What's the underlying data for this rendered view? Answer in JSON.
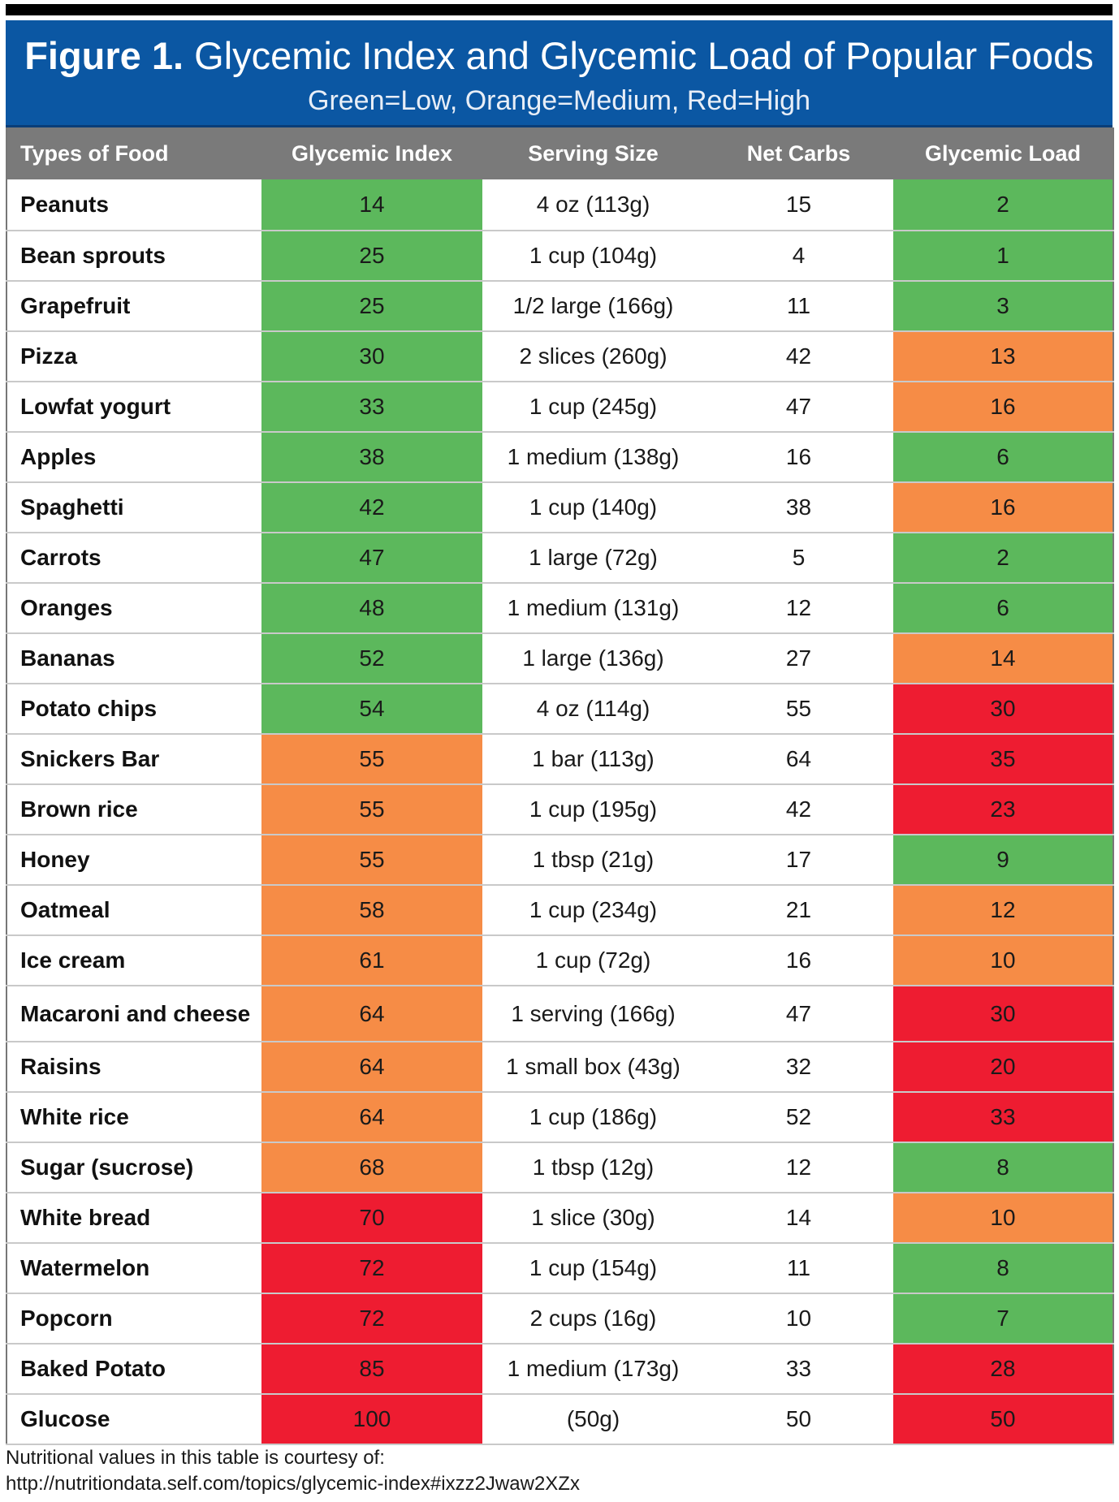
{
  "header": {
    "figure_label": "Figure 1.",
    "title": "Glycemic Index and Glycemic Load of Popular Foods",
    "subtitle": "Green=Low, Orange=Medium, Red=High"
  },
  "colors": {
    "low": "#5cb85c",
    "medium": "#f68c46",
    "high": "#ee1c31",
    "header_bg": "#0b57a3",
    "column_header_bg": "#7a7a7a"
  },
  "chart_data": {
    "type": "table",
    "title": "Figure 1. Glycemic Index and Glycemic Load of Popular Foods",
    "subtitle": "Green=Low, Orange=Medium, Red=High",
    "columns": [
      "Types of Food",
      "Glycemic Index",
      "Serving Size",
      "Net Carbs",
      "Glycemic Load"
    ],
    "rows": [
      {
        "food": "Peanuts",
        "gi": "14",
        "gi_level": "low",
        "serving": "4 oz (113g)",
        "net_carbs": "15",
        "gl": "2",
        "gl_level": "low"
      },
      {
        "food": "Bean sprouts",
        "gi": "25",
        "gi_level": "low",
        "serving": "1 cup (104g)",
        "net_carbs": "4",
        "gl": "1",
        "gl_level": "low"
      },
      {
        "food": "Grapefruit",
        "gi": "25",
        "gi_level": "low",
        "serving": "1/2 large (166g)",
        "net_carbs": "11",
        "gl": "3",
        "gl_level": "low"
      },
      {
        "food": "Pizza",
        "gi": "30",
        "gi_level": "low",
        "serving": "2 slices (260g)",
        "net_carbs": "42",
        "gl": "13",
        "gl_level": "medium"
      },
      {
        "food": "Lowfat yogurt",
        "gi": "33",
        "gi_level": "low",
        "serving": "1 cup (245g)",
        "net_carbs": "47",
        "gl": "16",
        "gl_level": "medium"
      },
      {
        "food": "Apples",
        "gi": "38",
        "gi_level": "low",
        "serving": "1 medium (138g)",
        "net_carbs": "16",
        "gl": "6",
        "gl_level": "low"
      },
      {
        "food": "Spaghetti",
        "gi": "42",
        "gi_level": "low",
        "serving": "1 cup (140g)",
        "net_carbs": "38",
        "gl": "16",
        "gl_level": "medium"
      },
      {
        "food": "Carrots",
        "gi": "47",
        "gi_level": "low",
        "serving": "1 large (72g)",
        "net_carbs": "5",
        "gl": "2",
        "gl_level": "low"
      },
      {
        "food": "Oranges",
        "gi": "48",
        "gi_level": "low",
        "serving": "1 medium (131g)",
        "net_carbs": "12",
        "gl": "6",
        "gl_level": "low"
      },
      {
        "food": "Bananas",
        "gi": "52",
        "gi_level": "low",
        "serving": "1 large (136g)",
        "net_carbs": "27",
        "gl": "14",
        "gl_level": "medium"
      },
      {
        "food": "Potato chips",
        "gi": "54",
        "gi_level": "low",
        "serving": "4 oz (114g)",
        "net_carbs": "55",
        "gl": "30",
        "gl_level": "high"
      },
      {
        "food": "Snickers Bar",
        "gi": "55",
        "gi_level": "medium",
        "serving": "1 bar (113g)",
        "net_carbs": "64",
        "gl": "35",
        "gl_level": "high"
      },
      {
        "food": "Brown rice",
        "gi": "55",
        "gi_level": "medium",
        "serving": "1 cup (195g)",
        "net_carbs": "42",
        "gl": "23",
        "gl_level": "high"
      },
      {
        "food": "Honey",
        "gi": "55",
        "gi_level": "medium",
        "serving": "1 tbsp (21g)",
        "net_carbs": "17",
        "gl": "9",
        "gl_level": "low"
      },
      {
        "food": "Oatmeal",
        "gi": "58",
        "gi_level": "medium",
        "serving": "1 cup (234g)",
        "net_carbs": "21",
        "gl": "12",
        "gl_level": "medium"
      },
      {
        "food": "Ice cream",
        "gi": "61",
        "gi_level": "medium",
        "serving": "1 cup (72g)",
        "net_carbs": "16",
        "gl": "10",
        "gl_level": "medium"
      },
      {
        "food": "Macaroni and cheese",
        "gi": "64",
        "gi_level": "medium",
        "serving": "1 serving (166g)",
        "net_carbs": "47",
        "gl": "30",
        "gl_level": "high",
        "tall": true
      },
      {
        "food": "Raisins",
        "gi": "64",
        "gi_level": "medium",
        "serving": "1 small box (43g)",
        "net_carbs": "32",
        "gl": "20",
        "gl_level": "high"
      },
      {
        "food": "White rice",
        "gi": "64",
        "gi_level": "medium",
        "serving": "1 cup (186g)",
        "net_carbs": "52",
        "gl": "33",
        "gl_level": "high"
      },
      {
        "food": "Sugar (sucrose)",
        "gi": "68",
        "gi_level": "medium",
        "serving": "1 tbsp (12g)",
        "net_carbs": "12",
        "gl": "8",
        "gl_level": "low"
      },
      {
        "food": "White bread",
        "gi": "70",
        "gi_level": "high",
        "serving": "1 slice (30g)",
        "net_carbs": "14",
        "gl": "10",
        "gl_level": "medium"
      },
      {
        "food": "Watermelon",
        "gi": "72",
        "gi_level": "high",
        "serving": "1 cup (154g)",
        "net_carbs": "11",
        "gl": "8",
        "gl_level": "low"
      },
      {
        "food": "Popcorn",
        "gi": "72",
        "gi_level": "high",
        "serving": "2 cups (16g)",
        "net_carbs": "10",
        "gl": "7",
        "gl_level": "low"
      },
      {
        "food": "Baked Potato",
        "gi": "85",
        "gi_level": "high",
        "serving": "1 medium (173g)",
        "net_carbs": "33",
        "gl": "28",
        "gl_level": "high"
      },
      {
        "food": "Glucose",
        "gi": "100",
        "gi_level": "high",
        "serving": "(50g)",
        "net_carbs": "50",
        "gl": "50",
        "gl_level": "high"
      }
    ]
  },
  "footer": {
    "line1": "Nutritional values in this table is courtesy of:",
    "line2": "http://nutritiondata.self.com/topics/glycemic-index#ixzz2Jwaw2XZx"
  }
}
